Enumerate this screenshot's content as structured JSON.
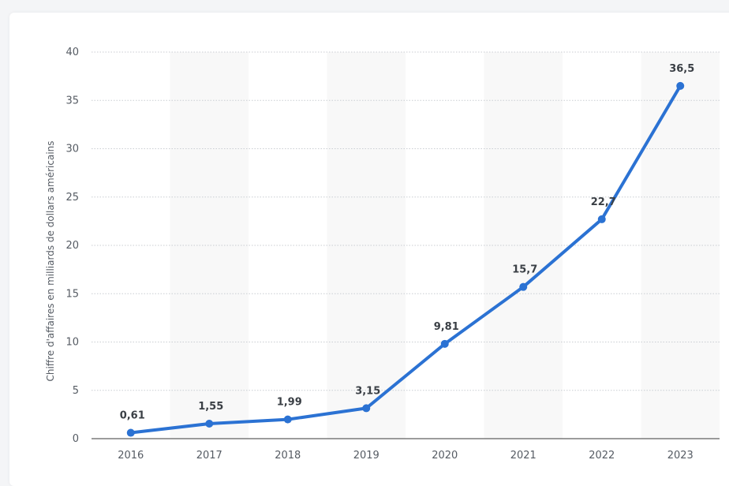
{
  "colors": {
    "line": "#2b72d3",
    "band": "#f8f8f8",
    "grid": "#c9cdd2",
    "axis": "#3a3a3a"
  },
  "chart_data": {
    "type": "line",
    "title": "",
    "xlabel": "",
    "ylabel": "Chiffre d'affaires en milliards de dollars américains",
    "categories": [
      "2016",
      "2017",
      "2018",
      "2019",
      "2020",
      "2021",
      "2022",
      "2023"
    ],
    "values": [
      0.61,
      1.55,
      1.99,
      3.15,
      9.81,
      15.7,
      22.7,
      36.5
    ],
    "value_labels": [
      "0,61",
      "1,55",
      "1,99",
      "3,15",
      "9,81",
      "15,7",
      "22,7",
      "36,5"
    ],
    "ylim": [
      0,
      40
    ],
    "yticks": [
      0,
      5,
      10,
      15,
      20,
      25,
      30,
      35,
      40
    ],
    "grid": true,
    "alternating_column_bands": true
  }
}
